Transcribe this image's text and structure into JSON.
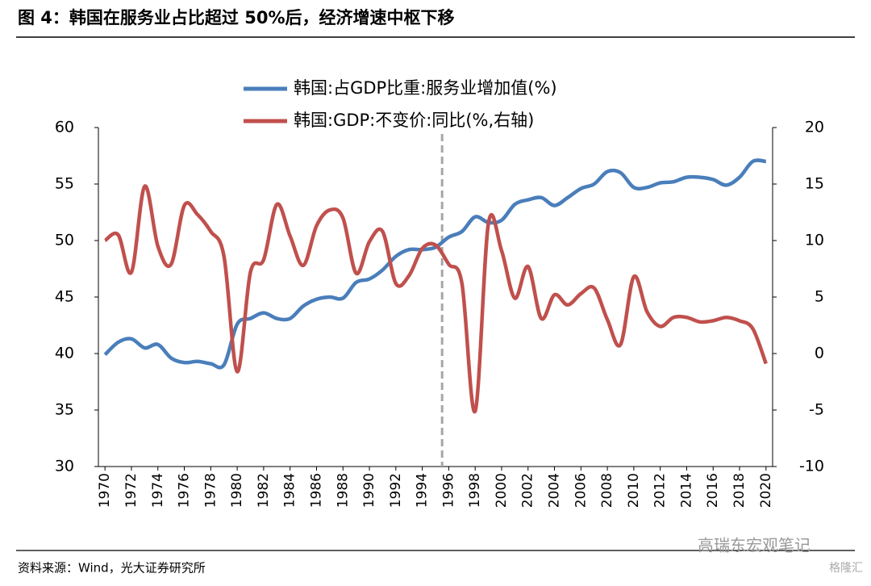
{
  "title": "图 4：韩国在服务业占比超过 50%后，经济增速中枢下移",
  "source": "资料来源：Wind，光大证券研究所",
  "watermark": "高瑞东宏观笔记",
  "watermark2": "格隆汇",
  "chart_data": {
    "type": "line",
    "x": [
      1970,
      1971,
      1972,
      1973,
      1974,
      1975,
      1976,
      1977,
      1978,
      1979,
      1980,
      1981,
      1982,
      1983,
      1984,
      1985,
      1986,
      1987,
      1988,
      1989,
      1990,
      1991,
      1992,
      1993,
      1994,
      1995,
      1996,
      1997,
      1998,
      1999,
      2000,
      2001,
      2002,
      2003,
      2004,
      2005,
      2006,
      2007,
      2008,
      2009,
      2010,
      2011,
      2012,
      2013,
      2014,
      2015,
      2016,
      2017,
      2018,
      2019,
      2020
    ],
    "xlim": [
      1969.5,
      2020.5
    ],
    "xticks": [
      1970,
      1972,
      1974,
      1976,
      1978,
      1980,
      1982,
      1984,
      1986,
      1988,
      1990,
      1992,
      1994,
      1996,
      1998,
      2000,
      2002,
      2004,
      2006,
      2008,
      2010,
      2012,
      2014,
      2016,
      2018,
      2020
    ],
    "ylim": [
      30,
      60
    ],
    "yticks": [
      30,
      35,
      40,
      45,
      50,
      55,
      60
    ],
    "y2lim": [
      -10,
      20
    ],
    "y2ticks": [
      -10,
      -5,
      0,
      5,
      10,
      15,
      20
    ],
    "reference_line_x": 1995.5,
    "series": [
      {
        "name": "韩国:占GDP比重:服务业增加值(%)",
        "color": "#4a7ebb",
        "values": [
          39.9,
          41.0,
          41.3,
          40.5,
          40.8,
          39.6,
          39.2,
          39.3,
          39.1,
          39.0,
          42.6,
          43.1,
          43.6,
          43.1,
          43.1,
          44.2,
          44.8,
          45.0,
          44.9,
          46.3,
          46.6,
          47.4,
          48.6,
          49.2,
          49.2,
          49.4,
          50.3,
          50.8,
          52.1,
          51.6,
          51.8,
          53.2,
          53.6,
          53.8,
          53.1,
          53.8,
          54.6,
          55.0,
          56.1,
          56.0,
          54.7,
          54.7,
          55.1,
          55.2,
          55.6,
          55.6,
          55.4,
          54.9,
          55.6,
          57.0,
          57.0
        ]
      },
      {
        "name": "韩国:GDP:不变价:同比(%,右轴)",
        "color": "#c0504d",
        "axis": "y2",
        "values": [
          10.0,
          10.5,
          7.2,
          14.8,
          9.5,
          7.9,
          13.1,
          12.3,
          10.8,
          8.6,
          -1.6,
          7.2,
          8.3,
          13.2,
          10.4,
          7.8,
          11.3,
          12.7,
          12.0,
          7.1,
          9.9,
          10.8,
          6.2,
          6.9,
          9.3,
          9.6,
          7.9,
          6.2,
          -5.1,
          11.5,
          9.1,
          4.9,
          7.7,
          3.1,
          5.2,
          4.3,
          5.3,
          5.8,
          3.0,
          0.8,
          6.8,
          3.7,
          2.4,
          3.2,
          3.2,
          2.8,
          2.9,
          3.2,
          2.9,
          2.2,
          -0.9
        ]
      }
    ]
  }
}
